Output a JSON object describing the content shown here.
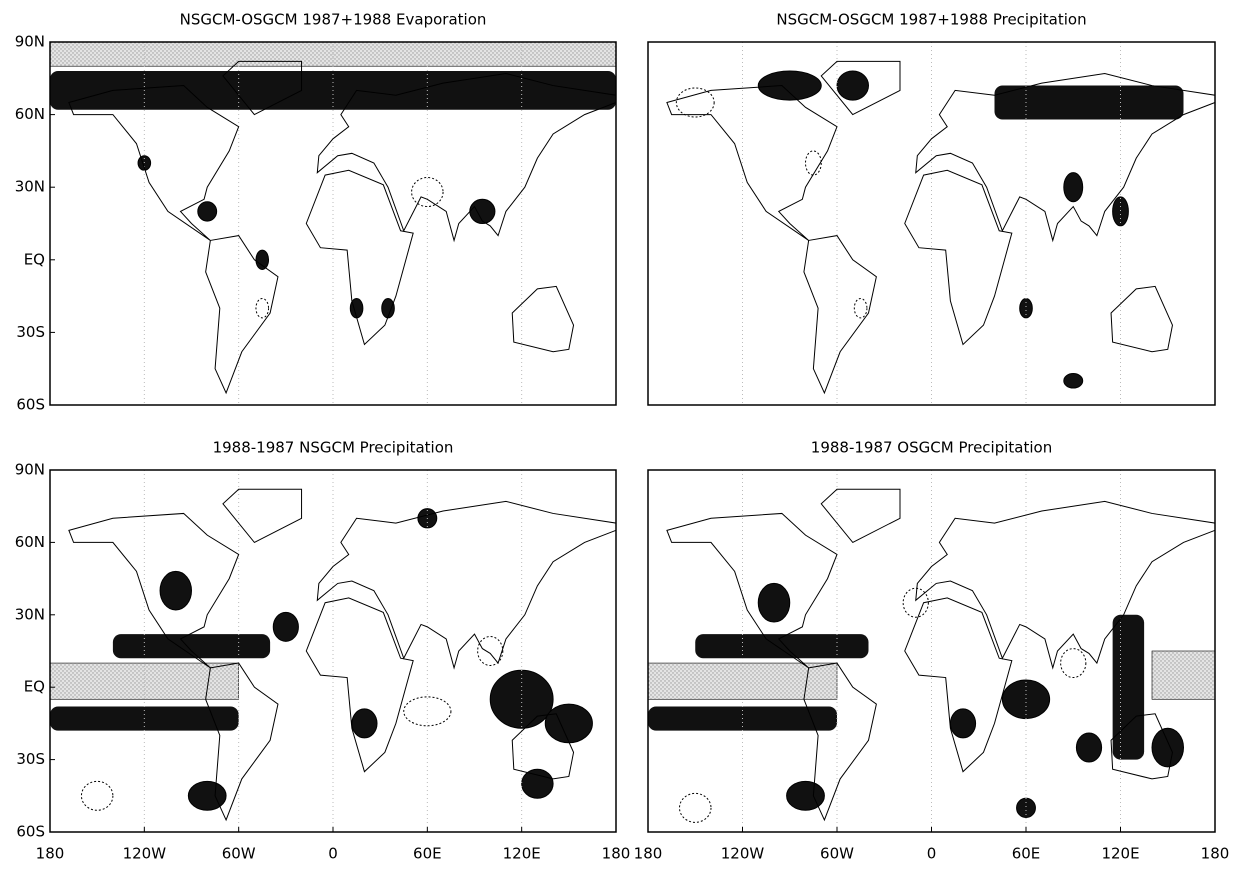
{
  "panels": [
    {
      "title": "NSGCM-OSGCM 1987+1988 Evaporation"
    },
    {
      "title": "NSGCM-OSGCM 1987+1988 Precipitation"
    },
    {
      "title": "1988-1987 NSGCM Precipitation"
    },
    {
      "title": "1988-1987 OSGCM Precipitation"
    }
  ],
  "y_axis_labels": [
    "90N",
    "60N",
    "30N",
    "EQ",
    "30S",
    "60S"
  ],
  "x_axis_labels": [
    "180",
    "120W",
    "60W",
    "0",
    "60E",
    "120E",
    "180"
  ]
}
